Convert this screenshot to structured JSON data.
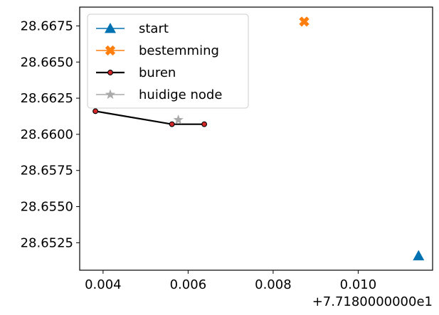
{
  "chart_data": {
    "type": "scatter",
    "title": "",
    "xlabel": "",
    "ylabel": "",
    "x_offset_label": "+7.7180000000e1",
    "xlim": [
      0.00345,
      0.01175
    ],
    "ylim": [
      28.6506,
      28.6688
    ],
    "x_ticks": [
      0.004,
      0.006,
      0.008,
      0.01
    ],
    "x_tick_labels": [
      "0.004",
      "0.006",
      "0.008",
      "0.010"
    ],
    "y_ticks": [
      28.6525,
      28.655,
      28.6575,
      28.66,
      28.6625,
      28.665,
      28.6675
    ],
    "y_tick_labels": [
      "28.6525",
      "28.6550",
      "28.6575",
      "28.6600",
      "28.6625",
      "28.6650",
      "28.6675"
    ],
    "grid": false,
    "legend_position": "upper-left",
    "series": [
      {
        "name": "start",
        "marker": "triangle",
        "color": "#0072b2",
        "x": [
          0.01142
        ],
        "y": [
          28.6516
        ]
      },
      {
        "name": "bestemming",
        "marker": "x-filled",
        "color": "#ff7f0e",
        "x": [
          0.00873
        ],
        "y": [
          28.6678
        ]
      },
      {
        "name": "buren",
        "marker": "circle",
        "color": "#000000",
        "marker_fill": "#d62728",
        "line": true,
        "x": [
          0.00382,
          0.00562,
          0.00638
        ],
        "y": [
          28.6616,
          28.6607,
          28.6607
        ]
      },
      {
        "name": "huidige node",
        "marker": "star",
        "color": "#aaaaaa",
        "x": [
          0.00577
        ],
        "y": [
          28.661
        ]
      }
    ]
  }
}
